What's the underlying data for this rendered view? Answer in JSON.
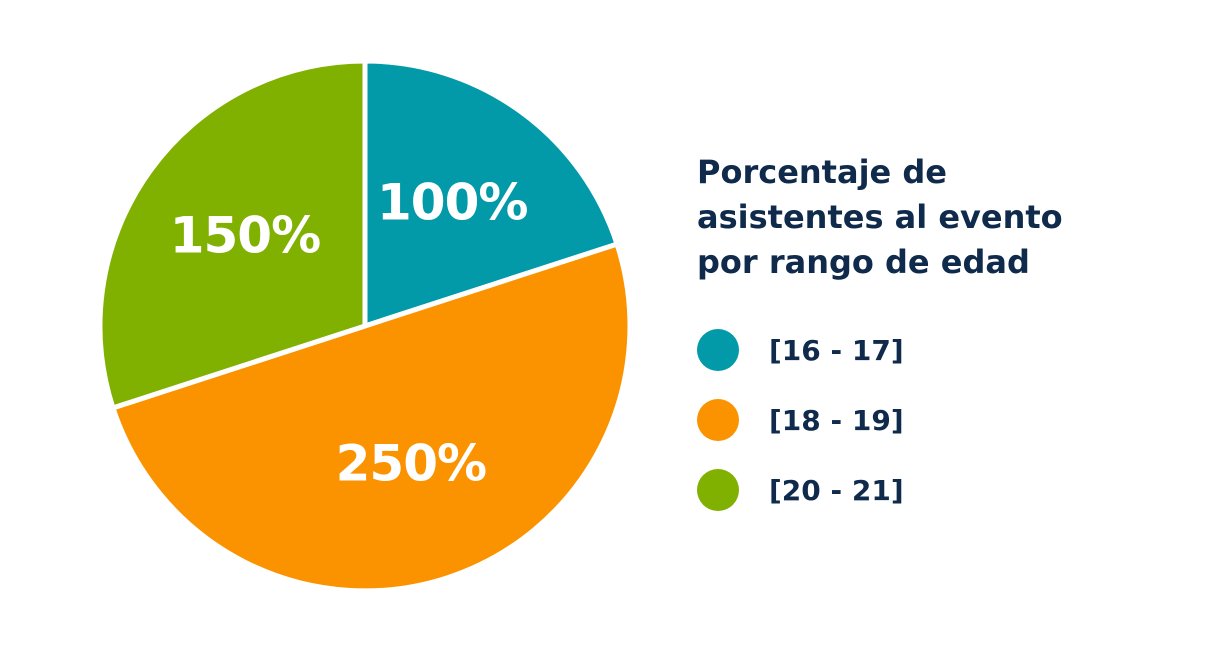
{
  "chart_data": {
    "type": "pie",
    "title": "Porcentaje de asistentes al evento por rango de edad",
    "title_lines": [
      "Porcentaje de",
      "asistentes al evento",
      "por rango de edad"
    ],
    "categories": [
      "[16 - 17]",
      "[18 - 19]",
      "[20 - 21]"
    ],
    "values": [
      100,
      250,
      150
    ],
    "value_labels": [
      "100%",
      "250%",
      "150%"
    ],
    "colors": [
      "#029aa8",
      "#fb9300",
      "#80b000"
    ],
    "legend_position": "right"
  }
}
